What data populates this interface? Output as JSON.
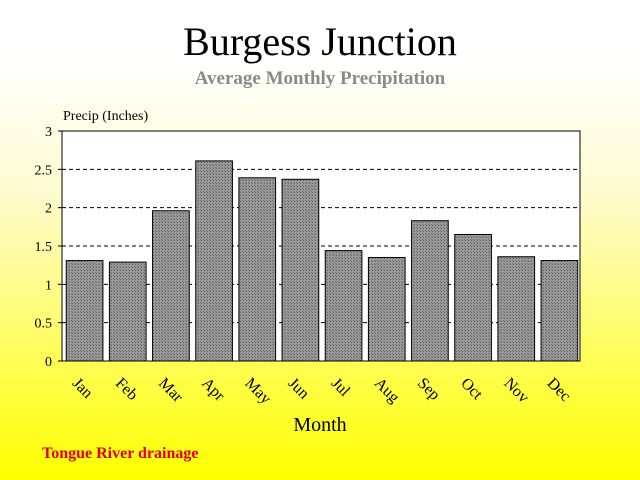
{
  "chart_data": {
    "type": "bar",
    "title": "Burgess Junction",
    "subtitle": "Average Monthly Precipitation",
    "ylabel": "Precip (Inches)",
    "xlabel": "Month",
    "categories": [
      "Jan",
      "Feb",
      "Mar",
      "Apr",
      "May",
      "Jun",
      "Jul",
      "Aug",
      "Sep",
      "Oct",
      "Nov",
      "Dec"
    ],
    "values": [
      1.31,
      1.29,
      1.96,
      2.61,
      2.39,
      2.37,
      1.44,
      1.35,
      1.83,
      1.65,
      1.36,
      1.31
    ],
    "ylim": [
      0,
      3
    ],
    "yticks": [
      "0",
      "0.5",
      "1",
      "1.5",
      "2",
      "2.5",
      "3"
    ],
    "grid": "dashed horizontal",
    "bar_color": "#8c8c8c",
    "footnote": "Tongue River drainage",
    "footnote_color": "#e00000"
  }
}
